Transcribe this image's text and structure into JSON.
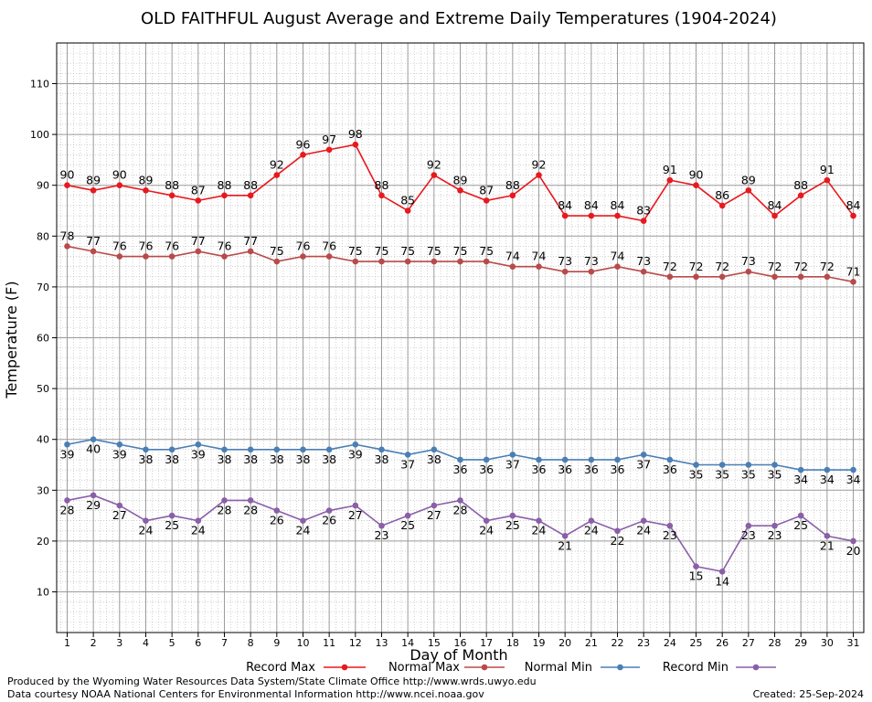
{
  "chart_data": {
    "type": "line",
    "title": "OLD FAITHFUL August Average and Extreme Daily Temperatures (1904-2024)",
    "xlabel": "Day of Month",
    "ylabel": "Temperature (F)",
    "xlim": [
      0.6,
      31.4
    ],
    "ylim": [
      2,
      118
    ],
    "yticks": [
      10,
      20,
      30,
      40,
      50,
      60,
      70,
      80,
      90,
      100,
      110
    ],
    "grid": true,
    "x": [
      1,
      2,
      3,
      4,
      5,
      6,
      7,
      8,
      9,
      10,
      11,
      12,
      13,
      14,
      15,
      16,
      17,
      18,
      19,
      20,
      21,
      22,
      23,
      24,
      25,
      26,
      27,
      28,
      29,
      30,
      31
    ],
    "series": [
      {
        "name": "Record Max",
        "color": "#e8191e",
        "label_position": "above",
        "values": [
          90,
          89,
          90,
          89,
          88,
          87,
          88,
          88,
          92,
          96,
          97,
          98,
          88,
          85,
          92,
          89,
          87,
          88,
          92,
          84,
          84,
          84,
          83,
          91,
          90,
          86,
          89,
          84,
          88,
          91,
          84
        ]
      },
      {
        "name": "Normal Max",
        "color": "#b94a4a",
        "label_position": "above",
        "values": [
          78,
          77,
          76,
          76,
          76,
          77,
          76,
          77,
          75,
          76,
          76,
          75,
          75,
          75,
          75,
          75,
          75,
          74,
          74,
          73,
          73,
          74,
          73,
          72,
          72,
          72,
          73,
          72,
          72,
          72,
          71
        ]
      },
      {
        "name": "Normal Min",
        "color": "#4a7fb5",
        "label_position": "below",
        "values": [
          39,
          40,
          39,
          38,
          38,
          39,
          38,
          38,
          38,
          38,
          38,
          39,
          38,
          37,
          38,
          36,
          36,
          37,
          36,
          36,
          36,
          36,
          37,
          36,
          35,
          35,
          35,
          35,
          34,
          34,
          34
        ]
      },
      {
        "name": "Record Min",
        "color": "#8a5fa8",
        "label_position": "below",
        "values": [
          28,
          29,
          27,
          24,
          25,
          24,
          28,
          28,
          26,
          24,
          26,
          27,
          23,
          25,
          27,
          28,
          24,
          25,
          24,
          21,
          24,
          22,
          24,
          23,
          15,
          14,
          23,
          23,
          25,
          21,
          20
        ]
      }
    ],
    "legend_position": "bottom"
  },
  "footer": {
    "credit_line_1": "Produced by the Wyoming Water Resources Data System/State Climate Office http://www.wrds.uwyo.edu",
    "credit_line_2": "Data courtesy NOAA National Centers for Environmental Information http://www.ncei.noaa.gov",
    "created": "Created:  25-Sep-2024"
  }
}
